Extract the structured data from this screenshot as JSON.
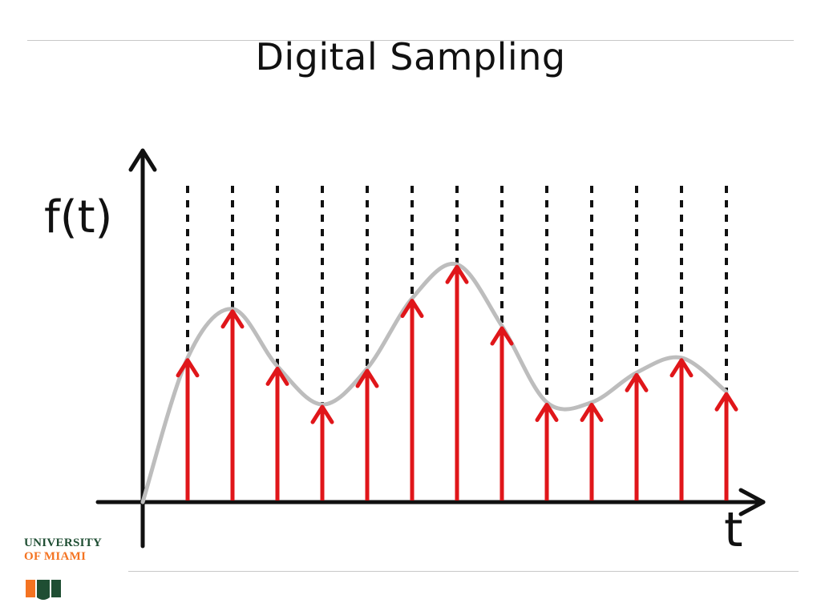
{
  "slide": {
    "title": "Digital Sampling"
  },
  "diagram": {
    "y_axis_label": "f(t)",
    "x_axis_label": "t",
    "curve_color": "#bdbdbd",
    "sample_color": "#e0161a",
    "grid_color": "#111111",
    "axis_color": "#111111",
    "samples": [
      {
        "t": 1,
        "value": 0.68
      },
      {
        "t": 2,
        "value": 0.91
      },
      {
        "t": 3,
        "value": 0.64
      },
      {
        "t": 4,
        "value": 0.46
      },
      {
        "t": 5,
        "value": 0.63
      },
      {
        "t": 6,
        "value": 0.96
      },
      {
        "t": 7,
        "value": 1.12
      },
      {
        "t": 8,
        "value": 0.83
      },
      {
        "t": 9,
        "value": 0.47
      },
      {
        "t": 10,
        "value": 0.47
      },
      {
        "t": 11,
        "value": 0.61
      },
      {
        "t": 12,
        "value": 0.68
      },
      {
        "t": 13,
        "value": 0.52
      }
    ]
  },
  "logo": {
    "line1": "UNIVERSITY",
    "line2": "OF MIAMI",
    "mark_green": "#1f4e33",
    "mark_orange": "#f47321"
  }
}
